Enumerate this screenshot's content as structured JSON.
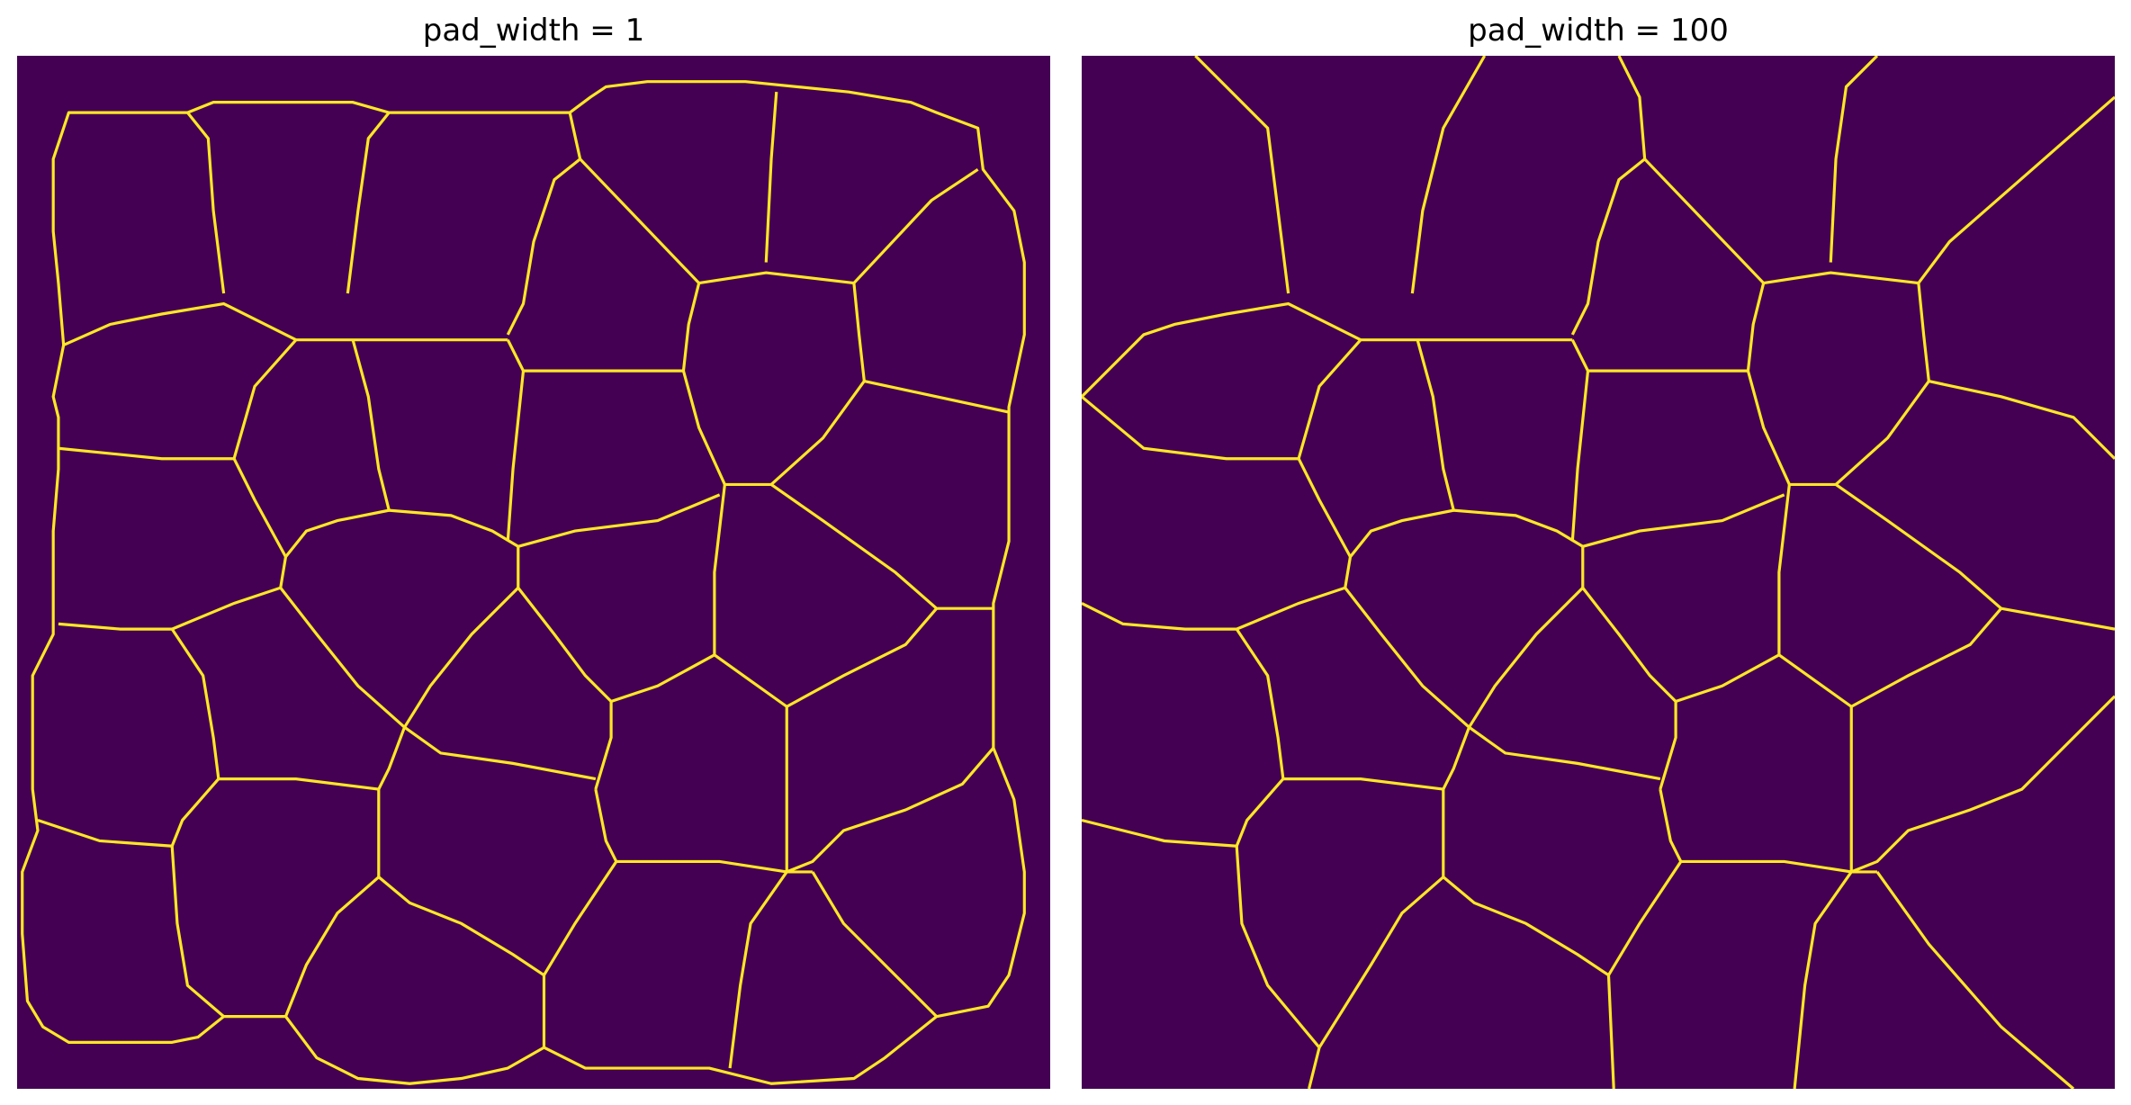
{
  "figure": {
    "panels": [
      {
        "title": "pad_width = 1",
        "background_color": "#440154",
        "boundary_color": "#fde725"
      },
      {
        "title": "pad_width = 100",
        "background_color": "#440154",
        "boundary_color": "#fde725"
      }
    ]
  }
}
